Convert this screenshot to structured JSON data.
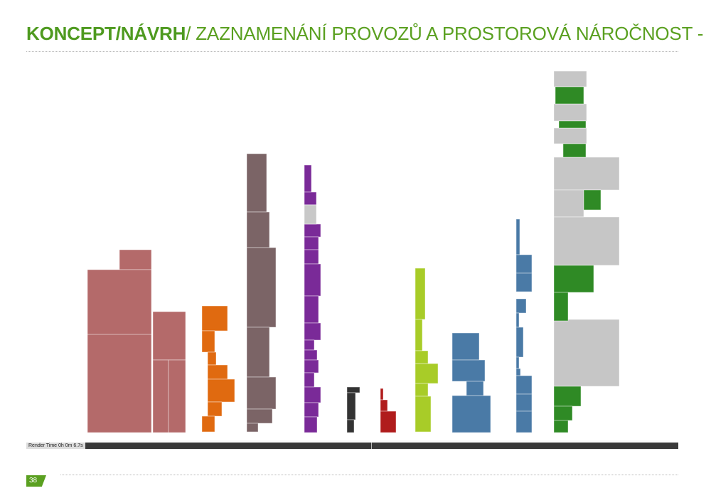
{
  "header": {
    "title_bold": "KONCEPT/NÁVRH",
    "title_rest": "/ ZAZNAMENÁNÍ PROVOZŮ A PROSTOROVÁ NÁROČNOST -",
    "bold_color": "#4e9a1f",
    "accent_color": "#5aa020"
  },
  "render_status": {
    "text": "Render Time 0h 0m 6.7s"
  },
  "footer": {
    "page_number": "38"
  },
  "volumes": [
    {
      "id": "old-rose",
      "color": "#b46a6a"
    },
    {
      "id": "orange",
      "color": "#e06a10"
    },
    {
      "id": "taupe",
      "color": "#7b6466"
    },
    {
      "id": "purple",
      "color": "#7a2a98"
    },
    {
      "id": "dark-gray",
      "color": "#333333"
    },
    {
      "id": "red",
      "color": "#b01c1c"
    },
    {
      "id": "lime",
      "color": "#a8cc28"
    },
    {
      "id": "steel-blue-wide",
      "color": "#4a7aa6"
    },
    {
      "id": "steel-blue-narrow",
      "color": "#4a7aa6"
    },
    {
      "id": "gray-green",
      "color": "#c6c6c6",
      "accent": "#2f8a25"
    }
  ]
}
